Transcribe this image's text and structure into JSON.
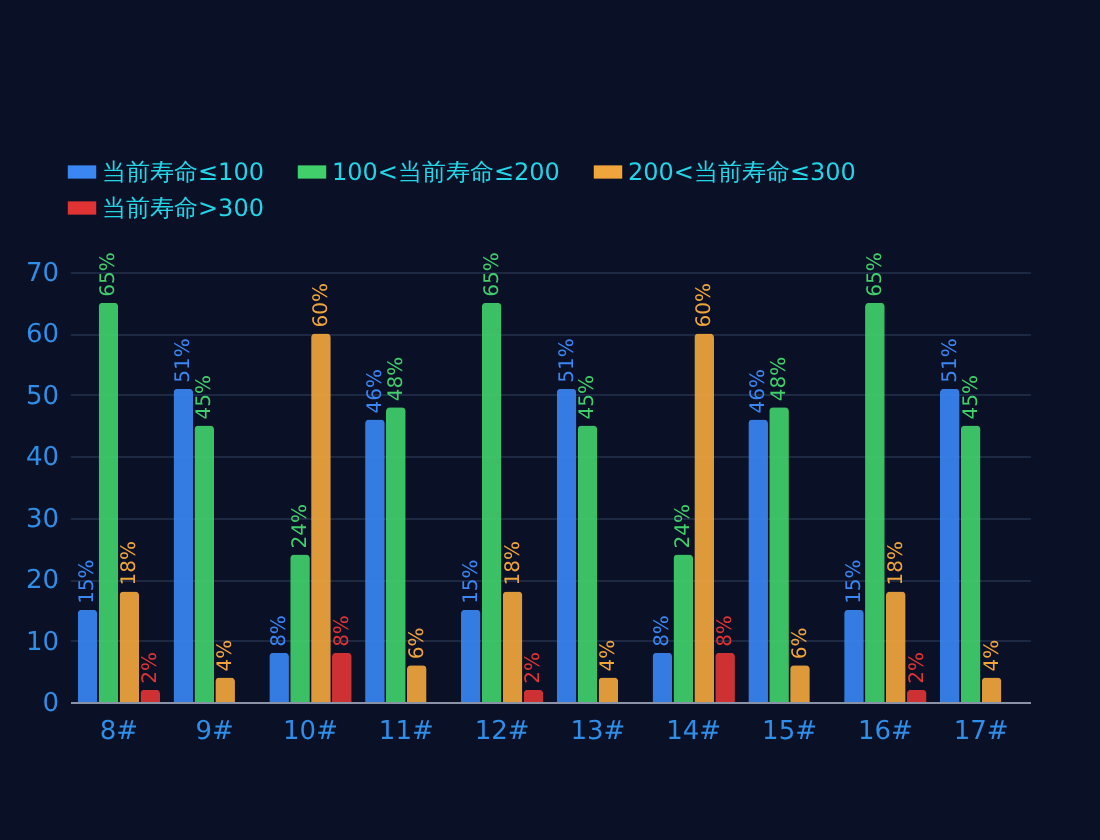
{
  "chart_data": {
    "type": "bar",
    "categories": [
      "8#",
      "9#",
      "10#",
      "11#",
      "12#",
      "13#",
      "14#",
      "15#",
      "16#",
      "17#"
    ],
    "series": [
      {
        "name": "当前寿命≤100",
        "color": "#3a86f2",
        "values": [
          15,
          51,
          8,
          46,
          15,
          51,
          8,
          46,
          15,
          51
        ],
        "value_labels": [
          "15%",
          "51%",
          "8%",
          "46%",
          "15%",
          "51%",
          "8%",
          "46%",
          "15%",
          "51%"
        ]
      },
      {
        "name": "100<当前寿命≤200",
        "color": "#41cf6b",
        "values": [
          65,
          45,
          24,
          48,
          65,
          45,
          24,
          48,
          65,
          45
        ],
        "value_labels": [
          "65%",
          "45%",
          "24%",
          "48%",
          "65%",
          "45%",
          "24%",
          "48%",
          "65%",
          "45%"
        ]
      },
      {
        "name": "200<当前寿命≤300",
        "color": "#f0a53c",
        "values": [
          18,
          4,
          60,
          6,
          18,
          4,
          60,
          6,
          18,
          4
        ],
        "value_labels": [
          "18%",
          "4%",
          "60%",
          "6%",
          "18%",
          "4%",
          "60%",
          "6%",
          "18%",
          "4%"
        ]
      },
      {
        "name": "当前寿命>300",
        "color": "#e03434",
        "values": [
          2,
          0,
          8,
          0,
          2,
          0,
          8,
          0,
          2,
          0
        ],
        "value_labels": [
          "2%",
          null,
          "8%",
          null,
          "2%",
          null,
          "8%",
          null,
          "2%",
          null
        ]
      }
    ],
    "ylim": [
      0,
      70
    ],
    "yticks": [
      0,
      10,
      20,
      30,
      40,
      50,
      60,
      70
    ],
    "grid": "y",
    "legend": "top"
  }
}
